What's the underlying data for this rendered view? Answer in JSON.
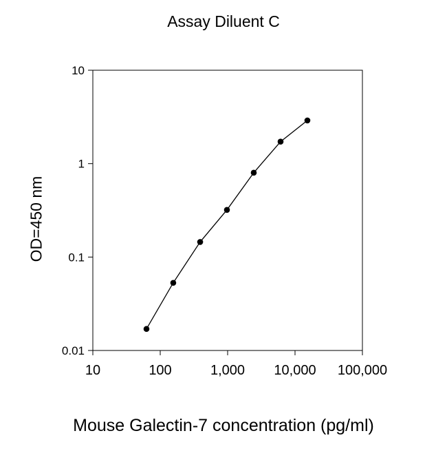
{
  "chart_data": {
    "type": "line",
    "title": "Assay Diluent C",
    "xlabel": "Mouse Galectin-7 concentration (pg/ml)",
    "ylabel": "OD=450 nm",
    "x_scale": "log",
    "y_scale": "log",
    "xlim": [
      10,
      100000
    ],
    "ylim": [
      0.01,
      10
    ],
    "x_ticks": [
      {
        "value": 10,
        "label": "10"
      },
      {
        "value": 100,
        "label": "100"
      },
      {
        "value": 1000,
        "label": "1,000"
      },
      {
        "value": 10000,
        "label": "10,000"
      },
      {
        "value": 100000,
        "label": "100,000"
      }
    ],
    "y_ticks": [
      {
        "value": 0.01,
        "label": "0.01"
      },
      {
        "value": 0.1,
        "label": "0.1"
      },
      {
        "value": 1,
        "label": "1"
      },
      {
        "value": 10,
        "label": "10"
      }
    ],
    "grid": false,
    "legend": "none",
    "series": [
      {
        "color": "#000000",
        "marker": "circle",
        "points": [
          {
            "x": 62.5,
            "y": 0.017
          },
          {
            "x": 156,
            "y": 0.053
          },
          {
            "x": 391,
            "y": 0.145
          },
          {
            "x": 977,
            "y": 0.32
          },
          {
            "x": 2441,
            "y": 0.8
          },
          {
            "x": 6104,
            "y": 1.72
          },
          {
            "x": 15260,
            "y": 2.9
          }
        ]
      }
    ]
  }
}
